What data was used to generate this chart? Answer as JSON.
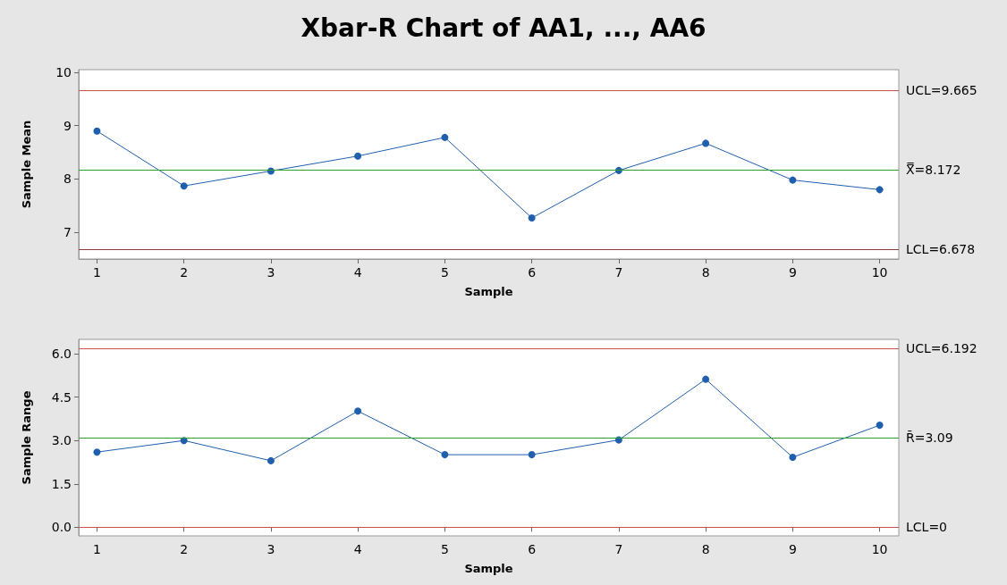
{
  "chart_data": [
    {
      "type": "line",
      "title": "Xbar-R Chart of AA1, ..., AA6",
      "xlabel": "Sample",
      "ylabel": "Sample Mean",
      "marker": "circle",
      "grid": false,
      "color": "#1f5fad",
      "x": [
        1,
        2,
        3,
        4,
        5,
        6,
        7,
        8,
        9,
        10
      ],
      "xlim": [
        0.79,
        10.22
      ],
      "xticks": [
        1,
        2,
        3,
        4,
        5,
        6,
        7,
        8,
        9,
        10
      ],
      "values": [
        8.9,
        7.87,
        8.15,
        8.43,
        8.78,
        7.27,
        8.16,
        8.67,
        7.98,
        7.8
      ],
      "ylim": [
        6.5,
        10.05
      ],
      "yticks": [
        7,
        8,
        9,
        10
      ],
      "ref_lines": [
        {
          "axis": "y",
          "value": 9.665,
          "label": "UCL=9.665",
          "color": "#c8504d"
        },
        {
          "axis": "y",
          "value": 8.172,
          "label": "X̿=8.172",
          "color": "#2ca02c"
        },
        {
          "axis": "y",
          "value": 6.678,
          "label": "LCL=6.678",
          "color": "#8b3a3a"
        }
      ]
    },
    {
      "type": "line",
      "xlabel": "Sample",
      "ylabel": "Sample Range",
      "marker": "circle",
      "grid": false,
      "color": "#1f5fad",
      "x": [
        1,
        2,
        3,
        4,
        5,
        6,
        7,
        8,
        9,
        10
      ],
      "xlim": [
        0.79,
        10.22
      ],
      "xticks": [
        1,
        2,
        3,
        4,
        5,
        6,
        7,
        8,
        9,
        10
      ],
      "values": [
        2.6,
        3.0,
        2.3,
        4.02,
        2.51,
        2.51,
        3.02,
        5.12,
        2.42,
        3.53
      ],
      "ylim": [
        -0.3,
        6.5
      ],
      "yticks": [
        {
          "value": 0,
          "label": "0.0"
        },
        {
          "value": 1.5,
          "label": "1.5"
        },
        {
          "value": 3,
          "label": "3.0"
        },
        {
          "value": 4.5,
          "label": "4.5"
        },
        {
          "value": 6,
          "label": "6.0"
        }
      ],
      "ref_lines": [
        {
          "axis": "y",
          "value": 6.192,
          "label": "UCL=6.192",
          "color": "#c8504d"
        },
        {
          "axis": "y",
          "value": 3.09,
          "label": "R̄=3.09",
          "color": "#2ca02c"
        },
        {
          "axis": "y",
          "value": 0,
          "label": "LCL=0",
          "color": "#c8504d"
        }
      ]
    }
  ]
}
